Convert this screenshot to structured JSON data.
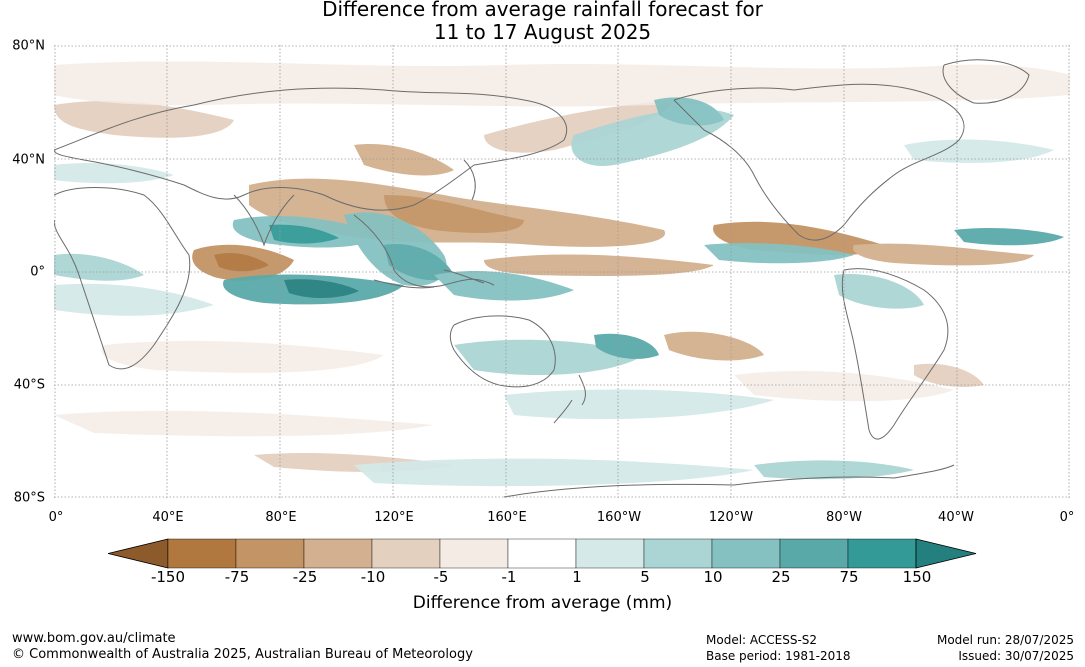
{
  "title": {
    "line1": "Difference from average rainfall forecast for",
    "line2": "11 to 17 August 2025"
  },
  "map": {
    "lat_labels": [
      "80°N",
      "40°N",
      "0°",
      "40°S",
      "80°S"
    ],
    "lon_labels": [
      "0°",
      "40°E",
      "80°E",
      "120°E",
      "160°E",
      "160°W",
      "120°W",
      "80°W",
      "40°W",
      "0°"
    ],
    "colors": {
      "ocean_bg": "#ffffff",
      "coast": "#6b6b6b",
      "grid": "#9a9a9a"
    }
  },
  "legend": {
    "ticks": [
      "-150",
      "-75",
      "-25",
      "-10",
      "-5",
      "-1",
      "1",
      "5",
      "10",
      "25",
      "75",
      "150"
    ],
    "colors": [
      "#8c5a2b",
      "#b0773f",
      "#c39466",
      "#d3b08f",
      "#e4d0bf",
      "#f4ebe5",
      "#ffffff",
      "#d4e9e8",
      "#abd5d4",
      "#85c1c1",
      "#5aa9a9",
      "#339a97",
      "#24807e"
    ],
    "label": "Difference from average (mm)"
  },
  "footer": {
    "url": "www.bom.gov.au/climate",
    "copyright": "© Commonwealth of Australia 2025, Australian Bureau of Meteorology",
    "model": "Model: ACCESS-S2",
    "base_period": "Base period: 1981-2018",
    "model_run": "Model run: 28/07/2025",
    "issued": "Issued: 30/07/2025"
  }
}
